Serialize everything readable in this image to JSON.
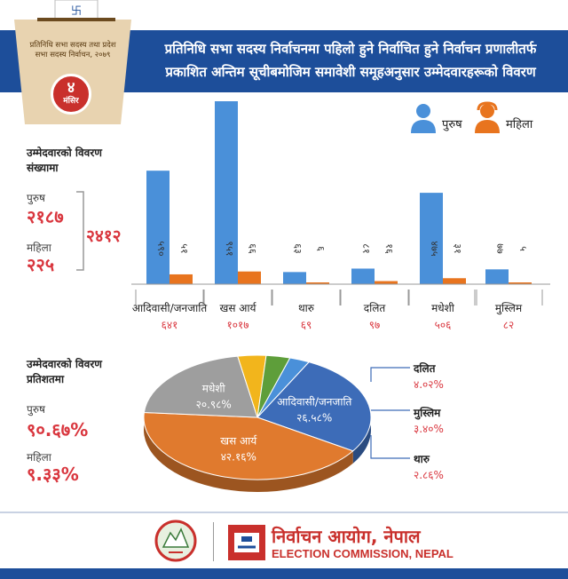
{
  "header": {
    "title_line1": "प्रतिनिधि सभा सदस्य निर्वाचनमा पहिलो हुने निर्वाचित हुने निर्वाचन प्रणालीतर्फ",
    "title_line2": "प्रकाशित अन्तिम सूचीबमोजिम समावेशी समूहअनुसार उम्मेदवारहरूको विवरण",
    "ballot_line1": "प्रतिनिधि सभा सदस्य तथा प्रदेश",
    "ballot_line2": "सभा सदस्य निर्वाचन, २०७९",
    "date_num": "४",
    "date_month": "मंसिर"
  },
  "legend": {
    "male": "पुरुष",
    "female": "महिला",
    "male_color": "#4a90d9",
    "female_color": "#e8741e"
  },
  "counts": {
    "heading": "उम्मेदवारको विवरण संख्यामा",
    "male_label": "पुरुष",
    "male_value": "२१८७",
    "female_label": "महिला",
    "female_value": "२२५",
    "total": "२४१२"
  },
  "percentages": {
    "heading": "उम्मेदवारको विवरण प्रतिशतमा",
    "male_label": "पुरुष",
    "male_value": "९०.६७%",
    "female_label": "महिला",
    "female_value": "९.३३%"
  },
  "chart_data": [
    {
      "type": "bar",
      "categories": [
        "आदिवासी/जनजाति",
        "खस आर्य",
        "थारु",
        "दलित",
        "मधेशी",
        "मुस्लिम"
      ],
      "category_totals": [
        "६४१",
        "१०१७",
        "६९",
        "९७",
        "५०६",
        "८२"
      ],
      "series": [
        {
          "name": "पुरुष",
          "values": [
            590,
            951,
            63,
            81,
            475,
            77
          ],
          "labels": [
            "५९०",
            "९५१",
            "६३",
            "८१",
            "४७५",
            "७७"
          ],
          "color": "#4a90d9"
        },
        {
          "name": "महिला",
          "values": [
            51,
            66,
            6,
            16,
            31,
            5
          ],
          "labels": [
            "५१",
            "६६",
            "६",
            "१६",
            "३१",
            "५"
          ],
          "color": "#e8741e"
        }
      ]
    },
    {
      "type": "pie",
      "slices": [
        {
          "label": "आदिवासी/जनजाति",
          "value": 26.58,
          "text": "२६.५८%",
          "color": "#3d6cb8"
        },
        {
          "label": "खस आर्य",
          "value": 42.16,
          "text": "४२.१६%",
          "color": "#e07a2e"
        },
        {
          "label": "मधेशी",
          "value": 20.98,
          "text": "२०.९८%",
          "color": "#9e9e9e"
        },
        {
          "label": "दलित",
          "value": 4.02,
          "text": "४.०२%",
          "color": "#f2b51c"
        },
        {
          "label": "मुस्लिम",
          "value": 3.4,
          "text": "३.४०%",
          "color": "#5e9e3a"
        },
        {
          "label": "थारु",
          "value": 2.86,
          "text": "२.८६%",
          "color": "#4a90d9"
        }
      ]
    }
  ],
  "footer": {
    "org_np": "निर्वाचन आयोग, नेपाल",
    "org_en": "ELECTION COMMISSION, NEPAL"
  }
}
